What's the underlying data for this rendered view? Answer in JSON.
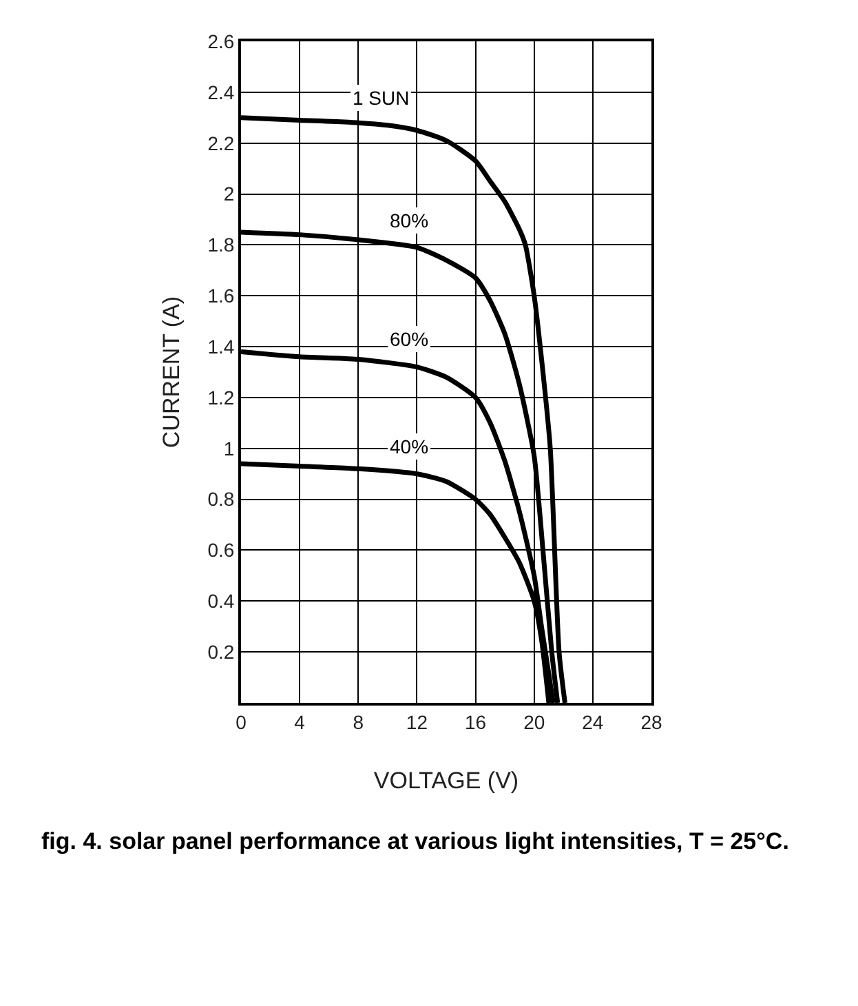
{
  "chart_data": {
    "type": "line",
    "xlabel": "VOLTAGE (V)",
    "ylabel": "CURRENT (A)",
    "xlim": [
      0,
      28
    ],
    "ylim": [
      0,
      2.6
    ],
    "xticks": [
      0,
      4,
      8,
      12,
      16,
      20,
      24,
      28
    ],
    "yticks": [
      0.2,
      0.4,
      0.6,
      0.8,
      1.0,
      1.2,
      1.4,
      1.6,
      1.8,
      2.0,
      2.2,
      2.4,
      2.6
    ],
    "grid": true,
    "legend": false,
    "marker": "none",
    "line_style": "solid",
    "annotations": [
      "fig. 4. solar panel performance at various light intensities, T = 25°C."
    ],
    "series": [
      {
        "name": "1 SUN",
        "color": "#000000",
        "x": [
          0,
          4,
          8,
          10,
          12,
          14,
          16,
          17,
          18,
          19,
          19.4,
          20,
          20.6,
          21.1,
          21.7,
          22.1
        ],
        "values": [
          2.3,
          2.29,
          2.28,
          2.27,
          2.25,
          2.21,
          2.13,
          2.05,
          1.97,
          1.86,
          1.8,
          1.6,
          1.3,
          1.0,
          0.2,
          0
        ]
      },
      {
        "name": "80%",
        "color": "#000000",
        "x": [
          0,
          4,
          8,
          12,
          14,
          16,
          17,
          18,
          19,
          20,
          20.6,
          21.2,
          21.6
        ],
        "values": [
          1.85,
          1.84,
          1.82,
          1.79,
          1.74,
          1.67,
          1.58,
          1.45,
          1.25,
          0.97,
          0.6,
          0.2,
          0
        ]
      },
      {
        "name": "60%",
        "color": "#000000",
        "x": [
          0,
          4,
          8,
          12,
          14,
          16,
          17,
          18,
          19,
          20,
          20.5,
          21.3
        ],
        "values": [
          1.38,
          1.36,
          1.35,
          1.32,
          1.28,
          1.2,
          1.1,
          0.95,
          0.75,
          0.5,
          0.3,
          0
        ]
      },
      {
        "name": "40%",
        "color": "#000000",
        "x": [
          0,
          4,
          8,
          12,
          14,
          16,
          17,
          18,
          19,
          20,
          20.5,
          21
        ],
        "values": [
          0.94,
          0.93,
          0.92,
          0.9,
          0.87,
          0.8,
          0.74,
          0.65,
          0.55,
          0.4,
          0.25,
          0
        ]
      }
    ]
  }
}
